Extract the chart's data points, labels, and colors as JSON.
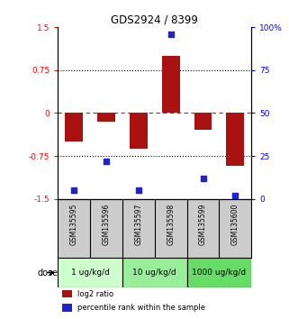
{
  "title": "GDS2924 / 8399",
  "samples": [
    "GSM135595",
    "GSM135596",
    "GSM135597",
    "GSM135598",
    "GSM135599",
    "GSM135600"
  ],
  "log2_ratio": [
    -0.5,
    -0.15,
    -0.62,
    1.0,
    -0.3,
    -0.92
  ],
  "percentile_rank": [
    5,
    22,
    5,
    96,
    12,
    2
  ],
  "bar_color": "#aa1111",
  "dot_color": "#2222cc",
  "ylim_left": [
    -1.5,
    1.5
  ],
  "ylim_right": [
    0,
    100
  ],
  "yticks_left": [
    -1.5,
    -0.75,
    0,
    0.75,
    1.5
  ],
  "yticks_right": [
    0,
    25,
    50,
    75,
    100
  ],
  "hlines_black": [
    0.75,
    -0.75
  ],
  "hline_red": 0,
  "dose_groups": [
    {
      "label": "1 ug/kg/d",
      "samples": [
        0,
        1
      ],
      "color": "#ccffcc"
    },
    {
      "label": "10 ug/kg/d",
      "samples": [
        2,
        3
      ],
      "color": "#99ee99"
    },
    {
      "label": "1000 ug/kg/d",
      "samples": [
        4,
        5
      ],
      "color": "#66dd66"
    }
  ],
  "dose_label": "dose",
  "legend_red": "log2 ratio",
  "legend_blue": "percentile rank within the sample",
  "background_color": "#ffffff",
  "sample_bg": "#cccccc"
}
